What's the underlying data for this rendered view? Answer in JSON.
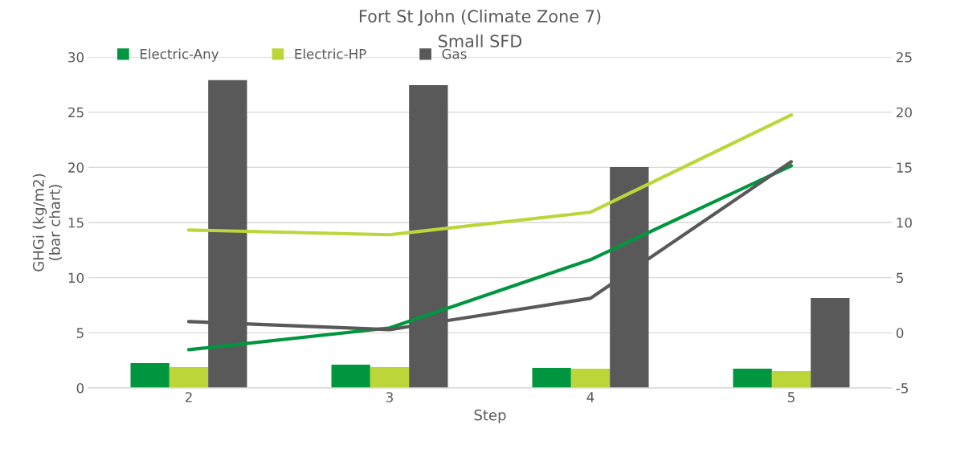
{
  "chart_data": {
    "type": "bar",
    "title": "Fort St John (Climate Zone 7)",
    "subtitle": "Small SFD",
    "xlabel": "Step",
    "ylabel": "GHGi (kg/m2)\n(bar chart)",
    "categories": [
      "2",
      "3",
      "4",
      "5"
    ],
    "series": [
      {
        "name": "Electric-Any",
        "color": "#00963f",
        "values": [
          2.26,
          2.11,
          1.82,
          1.75
        ]
      },
      {
        "name": "Electric-HP",
        "color": "#bcd63a",
        "values": [
          1.89,
          1.89,
          1.75,
          1.53
        ]
      },
      {
        "name": "Gas",
        "color": "#595959",
        "values": [
          27.9,
          27.46,
          20.03,
          8.16
        ]
      },
      {
        "type": "line",
        "axis": "y2",
        "color": "#bcd63a",
        "values": [
          9.32,
          8.89,
          10.93,
          19.74
        ]
      },
      {
        "type": "line",
        "axis": "y2",
        "color": "#00963f",
        "values": [
          -1.53,
          0.44,
          6.63,
          15.15
        ]
      },
      {
        "type": "line",
        "axis": "y2",
        "color": "#595959",
        "values": [
          1.02,
          0.29,
          3.13,
          15.51
        ]
      }
    ],
    "ylim": [
      0,
      30
    ],
    "yticks": [
      0,
      5,
      10,
      15,
      20,
      25,
      30
    ],
    "y2lim": [
      -5,
      25
    ],
    "y2ticks": [
      {
        "value": -5,
        "label": "-5"
      },
      0,
      5,
      10,
      15,
      20,
      25
    ],
    "grid": "y",
    "legend": "top left",
    "marker": "none",
    "line_style": "solid"
  }
}
